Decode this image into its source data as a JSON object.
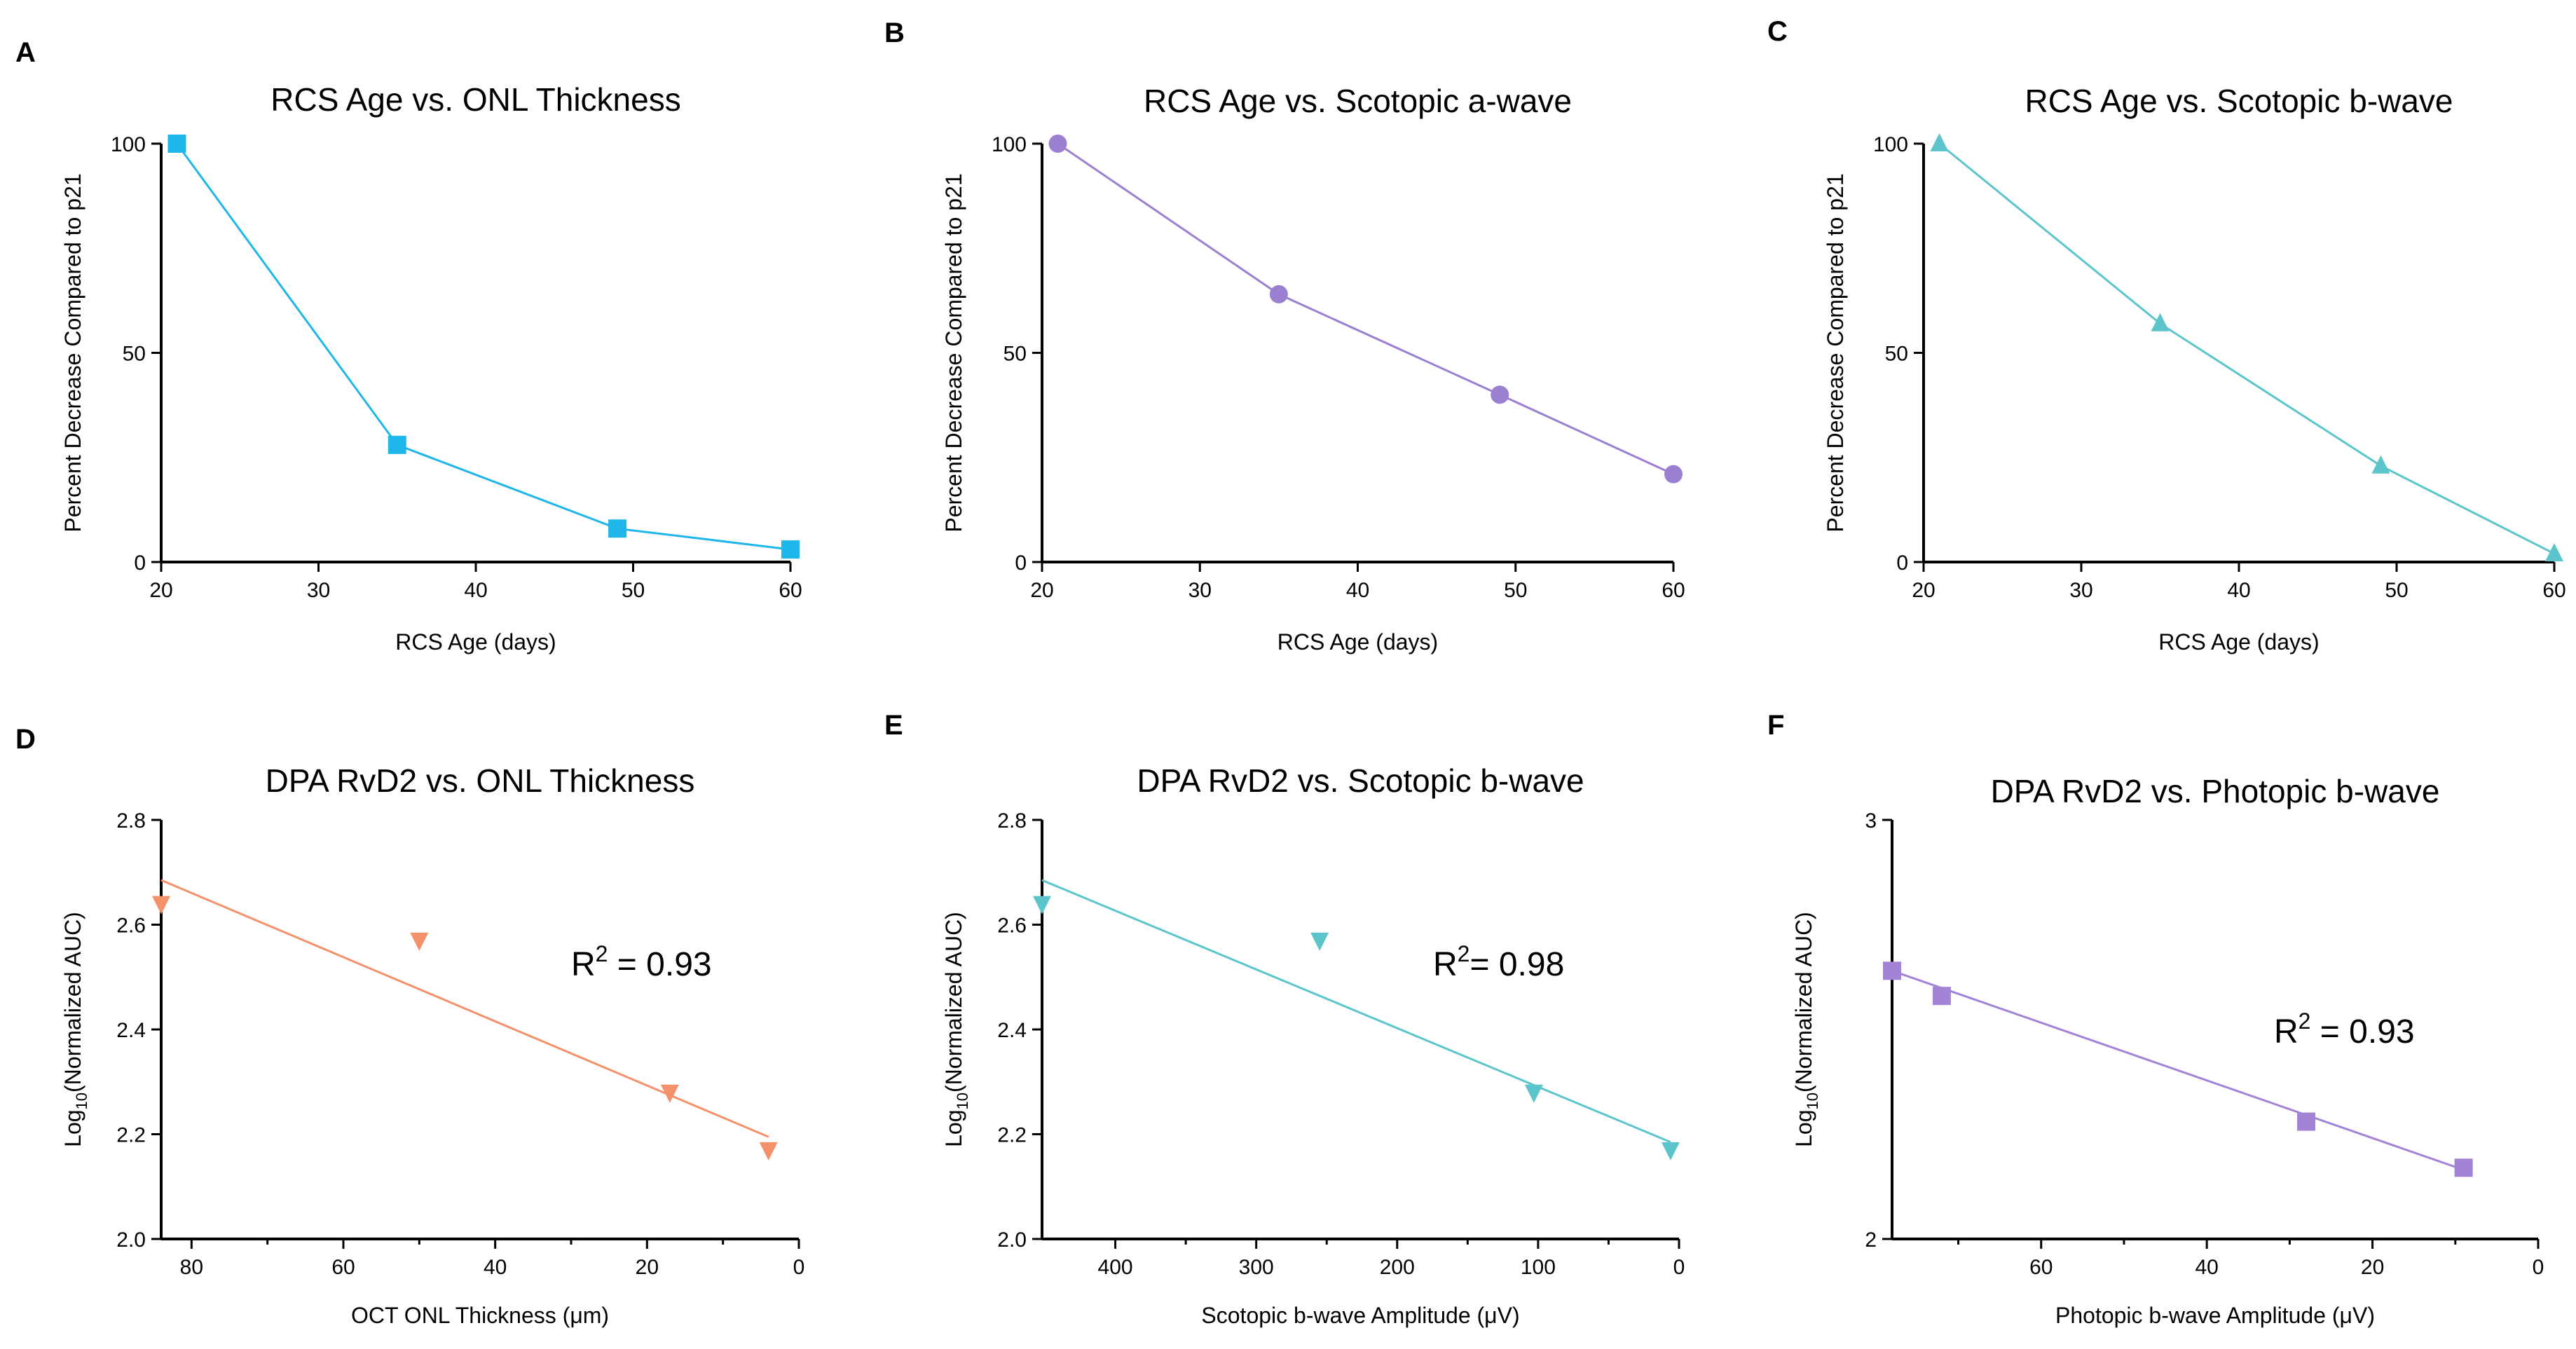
{
  "chart_data": [
    {
      "panel": "A",
      "type": "line",
      "title": "RCS Age vs. ONL Thickness",
      "xlabel": "RCS Age (days)",
      "ylabel": "Percent Decrease Compared to p21",
      "x": [
        21,
        35,
        49,
        60
      ],
      "series": [
        {
          "name": "ONL Thickness",
          "values": [
            100,
            28,
            8,
            3
          ],
          "color": "#1fb6ea",
          "marker": "square"
        }
      ],
      "xlim": [
        20,
        60
      ],
      "ylim": [
        0,
        100
      ],
      "xticks": [
        20,
        30,
        40,
        50,
        60
      ],
      "xticklabels": [
        "20",
        "30",
        "40",
        "50",
        "60"
      ],
      "yticks": [
        0,
        50,
        100
      ],
      "yticklabels": [
        "0",
        "50",
        "100"
      ]
    },
    {
      "panel": "B",
      "type": "line",
      "title": "RCS Age vs. Scotopic a-wave",
      "xlabel": "RCS Age (days)",
      "ylabel": "Percent Decrease Compared to p21",
      "x": [
        21,
        35,
        49,
        60
      ],
      "series": [
        {
          "name": "Scotopic a-wave",
          "values": [
            100,
            64,
            40,
            21
          ],
          "color": "#9b7fd1",
          "marker": "circle"
        }
      ],
      "xlim": [
        20,
        60
      ],
      "ylim": [
        0,
        100
      ],
      "xticks": [
        20,
        30,
        40,
        50,
        60
      ],
      "xticklabels": [
        "20",
        "30",
        "40",
        "50",
        "60"
      ],
      "yticks": [
        0,
        50,
        100
      ],
      "yticklabels": [
        "0",
        "50",
        "100"
      ]
    },
    {
      "panel": "C",
      "type": "line",
      "title": "RCS Age vs. Scotopic b-wave",
      "xlabel": "RCS Age (days)",
      "ylabel": "Percent Decrease Compared to p21",
      "x": [
        21,
        35,
        49,
        60
      ],
      "series": [
        {
          "name": "Scotopic b-wave",
          "values": [
            100,
            57,
            23,
            2
          ],
          "color": "#5cc5cc",
          "marker": "triangle-up"
        }
      ],
      "xlim": [
        20,
        60
      ],
      "ylim": [
        0,
        100
      ],
      "xticks": [
        20,
        30,
        40,
        50,
        60
      ],
      "xticklabels": [
        "20",
        "30",
        "40",
        "50",
        "60"
      ],
      "yticks": [
        0,
        50,
        100
      ],
      "yticklabels": [
        "0",
        "50",
        "100"
      ]
    },
    {
      "panel": "D",
      "type": "scatter",
      "title": "DPA RvD2 vs. ONL Thickness",
      "xlabel": "OCT ONL Thickness (μm)",
      "ylabel_main": "Log",
      "ylabel_sub": "10",
      "ylabel_rest": "(Normalized AUC)",
      "annotation_main": "R",
      "annotation_sup": "2",
      "annotation_rest": " = 0.93",
      "x": [
        84,
        50,
        17,
        4
      ],
      "series": [
        {
          "name": "DPA RvD2",
          "values": [
            2.64,
            2.57,
            2.28,
            2.17
          ],
          "color": "#f4916b",
          "marker": "triangle-down"
        }
      ],
      "fit": {
        "x": [
          84,
          4
        ],
        "y": [
          2.685,
          2.195
        ]
      },
      "x_reversed": true,
      "xlim": [
        0,
        84
      ],
      "ylim": [
        2.0,
        2.8
      ],
      "xticks": [
        80,
        60,
        40,
        20,
        0
      ],
      "xticklabels": [
        "80",
        "60",
        "40",
        "20",
        "0"
      ],
      "xminor": [
        70,
        50,
        30,
        10
      ],
      "yticks": [
        2.0,
        2.2,
        2.4,
        2.6,
        2.8
      ],
      "yticklabels": [
        "2.0",
        "2.2",
        "2.4",
        "2.6",
        "2.8"
      ]
    },
    {
      "panel": "E",
      "type": "scatter",
      "title": "DPA RvD2 vs. Scotopic b-wave",
      "xlabel": "Scotopic b-wave Amplitude (μV)",
      "ylabel_main": "Log",
      "ylabel_sub": "10",
      "ylabel_rest": "(Normalized AUC)",
      "annotation_main": "R",
      "annotation_sup": "2",
      "annotation_rest": "= 0.98",
      "x": [
        452,
        255,
        103,
        6
      ],
      "series": [
        {
          "name": "DPA RvD2",
          "values": [
            2.64,
            2.57,
            2.28,
            2.17
          ],
          "color": "#5cc5cc",
          "marker": "triangle-down"
        }
      ],
      "fit": {
        "x": [
          452,
          6
        ],
        "y": [
          2.685,
          2.185
        ]
      },
      "x_reversed": true,
      "xlim": [
        0,
        452
      ],
      "ylim": [
        2.0,
        2.8
      ],
      "xticks": [
        400,
        300,
        200,
        100,
        0
      ],
      "xticklabels": [
        "400",
        "300",
        "200",
        "100",
        "0"
      ],
      "xminor": [
        350,
        250,
        150,
        50
      ],
      "yticks": [
        2.0,
        2.2,
        2.4,
        2.6,
        2.8
      ],
      "yticklabels": [
        "2.0",
        "2.2",
        "2.4",
        "2.6",
        "2.8"
      ]
    },
    {
      "panel": "F",
      "type": "scatter",
      "title": "DPA RvD2 vs. Photopic b-wave",
      "xlabel": "Photopic b-wave Amplitude (μV)",
      "ylabel_main": "Log",
      "ylabel_sub": "10",
      "ylabel_rest": "(Normalized AUC)",
      "annotation_main": "R",
      "annotation_sup": "2",
      "annotation_rest": " = 0.93",
      "x": [
        78,
        72,
        28,
        9
      ],
      "series": [
        {
          "name": "DPA RvD2",
          "values": [
            2.64,
            2.58,
            2.28,
            2.17
          ],
          "color": "#a283d6",
          "marker": "square"
        }
      ],
      "fit": {
        "x": [
          78,
          9
        ],
        "y": [
          2.64,
          2.165
        ]
      },
      "x_reversed": true,
      "xlim": [
        0,
        78
      ],
      "ylim": [
        2.0,
        3.0
      ],
      "xticks": [
        60,
        40,
        20,
        0
      ],
      "xticklabels": [
        "60",
        "40",
        "20",
        "0"
      ],
      "xminor": [
        70,
        50,
        30,
        10
      ],
      "yticks": [
        2.0,
        3.0
      ],
      "yticklabels": [
        "2",
        "3"
      ]
    }
  ]
}
